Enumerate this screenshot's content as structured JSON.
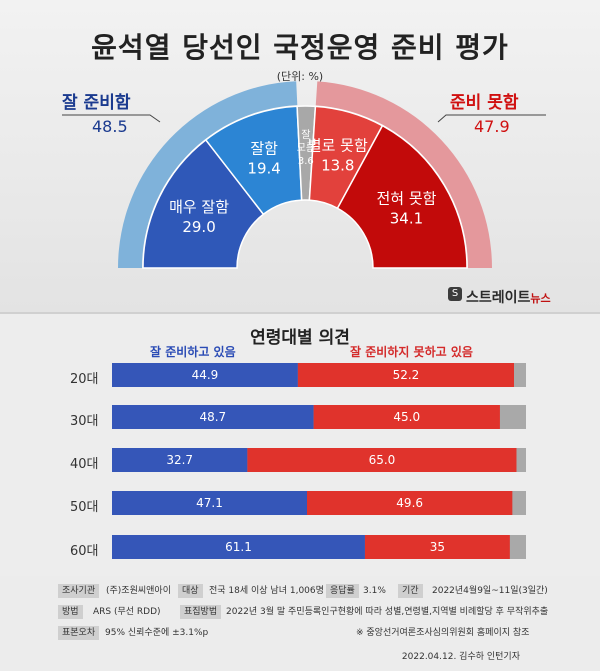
{
  "title": "윤석열 당선인 국정운영 준비 평가",
  "unit": "(단위: %)",
  "brand": {
    "name": "스트레이트",
    "suffix": "뉴스"
  },
  "colors": {
    "good_outer": "#7fb2da",
    "bad_outer": "#e4989c",
    "very_good": "#2f58b8",
    "good": "#2c85d4",
    "dontknow": "#a8a8a8",
    "bad": "#e2413c",
    "very_bad": "#c20a0a",
    "bar_left": "#3556b8",
    "bar_right": "#e0332c",
    "bar_rest": "#a9a9a9",
    "label_left": "#1a3a8f",
    "label_right": "#d01010"
  },
  "chart_data": [
    {
      "type": "pie",
      "subtype": "half-donut",
      "inner_ring": [
        {
          "label": "매우 잘함",
          "value": 29.0
        },
        {
          "label": "잘함",
          "value": 19.4
        },
        {
          "label": "잘 모름",
          "value": 3.6
        },
        {
          "label": "별로 못함",
          "value": 13.8
        },
        {
          "label": "전혀 못함",
          "value": 34.1
        }
      ],
      "outer_ring": [
        {
          "label": "잘 준비함",
          "value": 48.5
        },
        {
          "label": "준비 못함",
          "value": 47.9
        }
      ]
    },
    {
      "type": "bar",
      "stacked": true,
      "orientation": "horizontal",
      "title": "연령대별 의견",
      "categories": [
        "20대",
        "30대",
        "40대",
        "50대",
        "60대"
      ],
      "series": [
        {
          "name": "잘 준비하고 있음",
          "values": [
            44.9,
            48.7,
            32.7,
            47.1,
            61.1
          ]
        },
        {
          "name": "잘 준비하지 못하고 있음",
          "values": [
            52.2,
            45.0,
            65.0,
            49.6,
            35
          ]
        }
      ],
      "value_labels_right": [
        "52.2",
        "45.0",
        "65.0",
        "49.6",
        "35"
      ],
      "value_labels_left": [
        "44.9",
        "48.7",
        "32.7",
        "47.1",
        "61.1"
      ],
      "xlim": [
        0,
        100
      ]
    }
  ],
  "footer": {
    "agency_tag": "조사기관",
    "agency": "(주)조원씨앤아이",
    "target_tag": "대상",
    "target": "전국 18세 이상 남녀 1,006명",
    "response_tag": "응답률",
    "response": "3.1%",
    "period_tag": "기간",
    "period": "2022년4월9일~11일(3일간)",
    "method_tag": "방법",
    "method": "ARS (무선 RDD)",
    "sampling_tag": "표집방법",
    "sampling": "2022년 3월 말 주민등록인구현황에 따라 성별,연령별,지역별 비례할당 후 무작위추출",
    "error_tag": "표본오차",
    "error": "95% 신뢰수준에 ±3.1%p",
    "note": "※ 중앙선거여론조사심의위원회 홈페이지 참조",
    "credit": "2022.04.12. 김수하 인턴기자"
  }
}
